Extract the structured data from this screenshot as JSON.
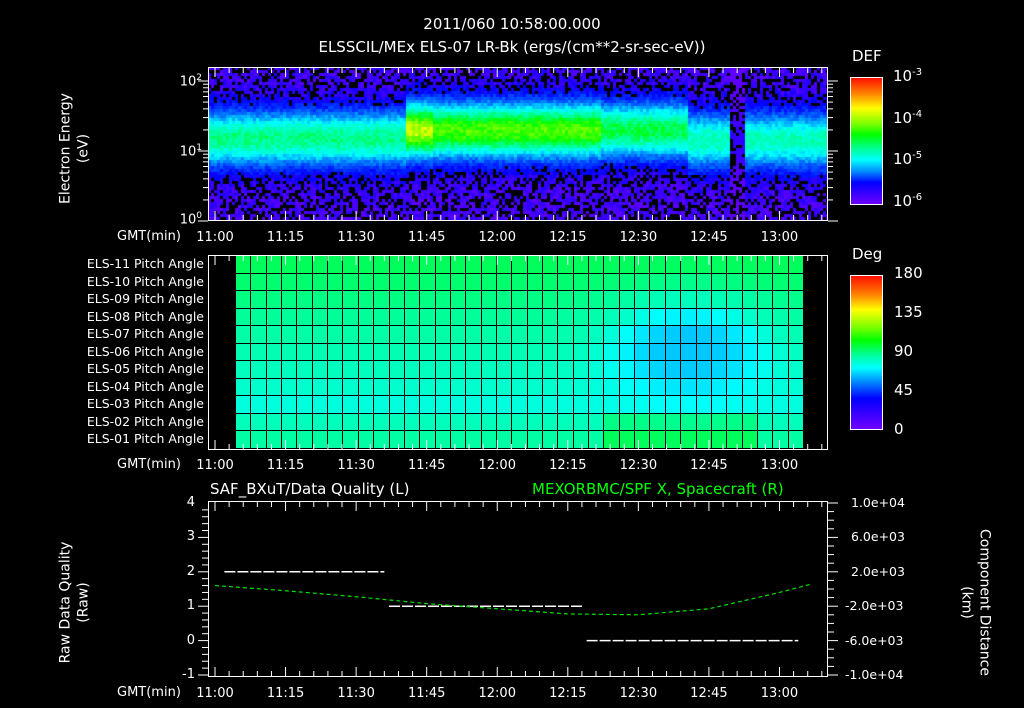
{
  "header": {
    "timestamp": "2011/060 10:58:00.000",
    "subtitle": "ELSSCIL/MEx ELS-07 LR-Bk  (ergs/(cm**2-sr-sec-eV))"
  },
  "x_axis": {
    "label": "GMT(min)",
    "ticks": [
      "11:00",
      "11:15",
      "11:30",
      "11:45",
      "12:00",
      "12:15",
      "12:30",
      "12:45",
      "13:00"
    ]
  },
  "panel1": {
    "ylabel_line1": "Electron Energy",
    "ylabel_line2": "(eV)",
    "yticks": [
      {
        "base": "10",
        "exp": "2"
      },
      {
        "base": "10",
        "exp": "1"
      },
      {
        "base": "10",
        "exp": "0"
      }
    ],
    "colorbar": {
      "title": "DEF",
      "ticks": [
        {
          "base": "10",
          "exp": "-3"
        },
        {
          "base": "10",
          "exp": "-4"
        },
        {
          "base": "10",
          "exp": "-5"
        },
        {
          "base": "10",
          "exp": "-6"
        }
      ]
    }
  },
  "panel2": {
    "rows": [
      "ELS-11 Pitch Angle",
      "ELS-10 Pitch Angle",
      "ELS-09 Pitch Angle",
      "ELS-08 Pitch Angle",
      "ELS-07 Pitch Angle",
      "ELS-06 Pitch Angle",
      "ELS-05 Pitch Angle",
      "ELS-04 Pitch Angle",
      "ELS-03 Pitch Angle",
      "ELS-02 Pitch Angle",
      "ELS-01 Pitch Angle"
    ],
    "colorbar": {
      "title": "Deg",
      "ticks": [
        "180",
        "135",
        "90",
        "45",
        "0"
      ]
    }
  },
  "panel3": {
    "left_title": "SAF_BXuT/Data Quality (L)",
    "right_title": "MEXORBMC/SPF X, Spacecraft (R)",
    "right_title_color": "#00ff00",
    "ylabel_left_line1": "Raw Data Quality",
    "ylabel_left_line2": "(Raw)",
    "ylabel_right_line1": "Component Distance",
    "ylabel_right_line2": "(km)",
    "yticks_left": [
      "4",
      "3",
      "2",
      "1",
      "0",
      "-1"
    ],
    "yticks_right": [
      "1.0e+04",
      "6.0e+03",
      "2.0e+03",
      "-2.0e+03",
      "-6.0e+03",
      "-1.0e+04"
    ]
  },
  "chart_data": [
    {
      "type": "heatmap",
      "title": "ELSSCIL/MEx ELS-07 LR-Bk (ergs/(cm**2-sr-sec-eV))",
      "xlabel": "GMT(min)",
      "ylabel": "Electron Energy (eV)",
      "x_ticks": [
        "11:00",
        "11:15",
        "11:30",
        "11:45",
        "12:00",
        "12:15",
        "12:30",
        "12:45",
        "13:00"
      ],
      "y_scale": "log",
      "ylim": [
        1,
        150
      ],
      "colorbar": {
        "label": "DEF",
        "scale": "log",
        "range": [
          1e-06,
          0.001
        ]
      },
      "description": "Energy band centered ~10-20 eV across the interval; intensification (yellow-green) starting ~11:43 through ~12:20; gap/dropout near 12:53; fading to cyan after 12:30"
    },
    {
      "type": "heatmap",
      "title": "Pitch Angle",
      "xlabel": "GMT(min)",
      "rows": [
        "ELS-11",
        "ELS-10",
        "ELS-09",
        "ELS-08",
        "ELS-07",
        "ELS-06",
        "ELS-05",
        "ELS-04",
        "ELS-03",
        "ELS-02",
        "ELS-01"
      ],
      "x_range": [
        "11:02",
        "13:04"
      ],
      "colorbar": {
        "label": "Deg",
        "range": [
          0,
          180
        ],
        "ticks": [
          0,
          45,
          90,
          135,
          180
        ]
      },
      "description": "Values mostly ~85-100 deg (green); minimum ~55-65 deg (cyan-blue) for ELS-07/06 around 12:30-12:45"
    },
    {
      "type": "line",
      "title_left": "SAF_BXuT/Data Quality (L)",
      "title_right": "MEXORBMC/SPF X, Spacecraft (R)",
      "xlabel": "GMT(min)",
      "ylabel_left": "Raw Data Quality (Raw)",
      "ylabel_right": "Component Distance (km)",
      "ylim_left": [
        -1,
        4
      ],
      "ylim_right": [
        -10000,
        10000
      ],
      "series": [
        {
          "name": "Data Quality",
          "axis": "left",
          "color": "#ffffff",
          "x": [
            "11:02",
            "11:36",
            "11:37",
            "12:18",
            "12:19",
            "13:04"
          ],
          "values": [
            2,
            2,
            1,
            1,
            0,
            0
          ]
        },
        {
          "name": "SPF X",
          "axis": "right",
          "color": "#00ff00",
          "x": [
            "11:00",
            "11:15",
            "11:30",
            "11:45",
            "12:00",
            "12:15",
            "12:30",
            "12:45",
            "13:00",
            "13:07"
          ],
          "values": [
            400,
            -200,
            -900,
            -1700,
            -2300,
            -2900,
            -3000,
            -2300,
            -400,
            600
          ]
        }
      ]
    }
  ]
}
